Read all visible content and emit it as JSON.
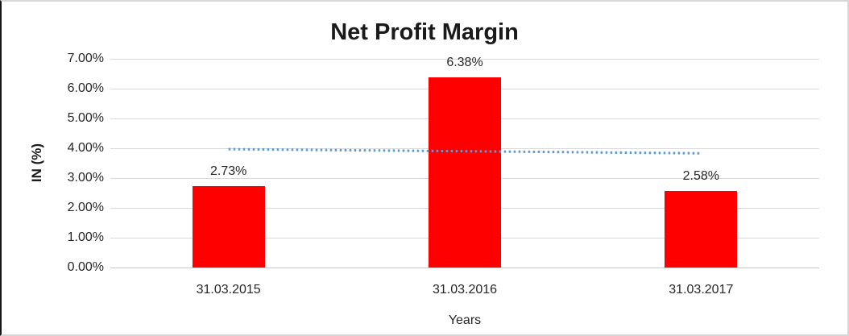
{
  "chart_data": {
    "type": "bar",
    "title": "Net Profit Margin",
    "xlabel": "Years",
    "ylabel": "IN (%)",
    "categories": [
      "31.03.2015",
      "31.03.2016",
      "31.03.2017"
    ],
    "series": [
      {
        "name": "Net Profit Margin",
        "color": "#FF0000",
        "values": [
          2.73,
          6.38,
          2.58
        ],
        "data_labels": [
          "2.73%",
          "6.38%",
          "2.58%"
        ]
      }
    ],
    "trendline": {
      "type": "linear",
      "style": "dotted",
      "color": "#5B9BD5",
      "start_value": 3.97,
      "end_value": 3.83
    },
    "y_axis": {
      "min": 0,
      "max": 7,
      "step": 1,
      "tick_labels": [
        "0.00%",
        "1.00%",
        "2.00%",
        "3.00%",
        "4.00%",
        "5.00%",
        "6.00%",
        "7.00%"
      ]
    },
    "grid": true,
    "legend": false,
    "colors": {
      "gridline": "#D9D9D9",
      "text": "#262626",
      "title": "#1A1A1A"
    }
  }
}
